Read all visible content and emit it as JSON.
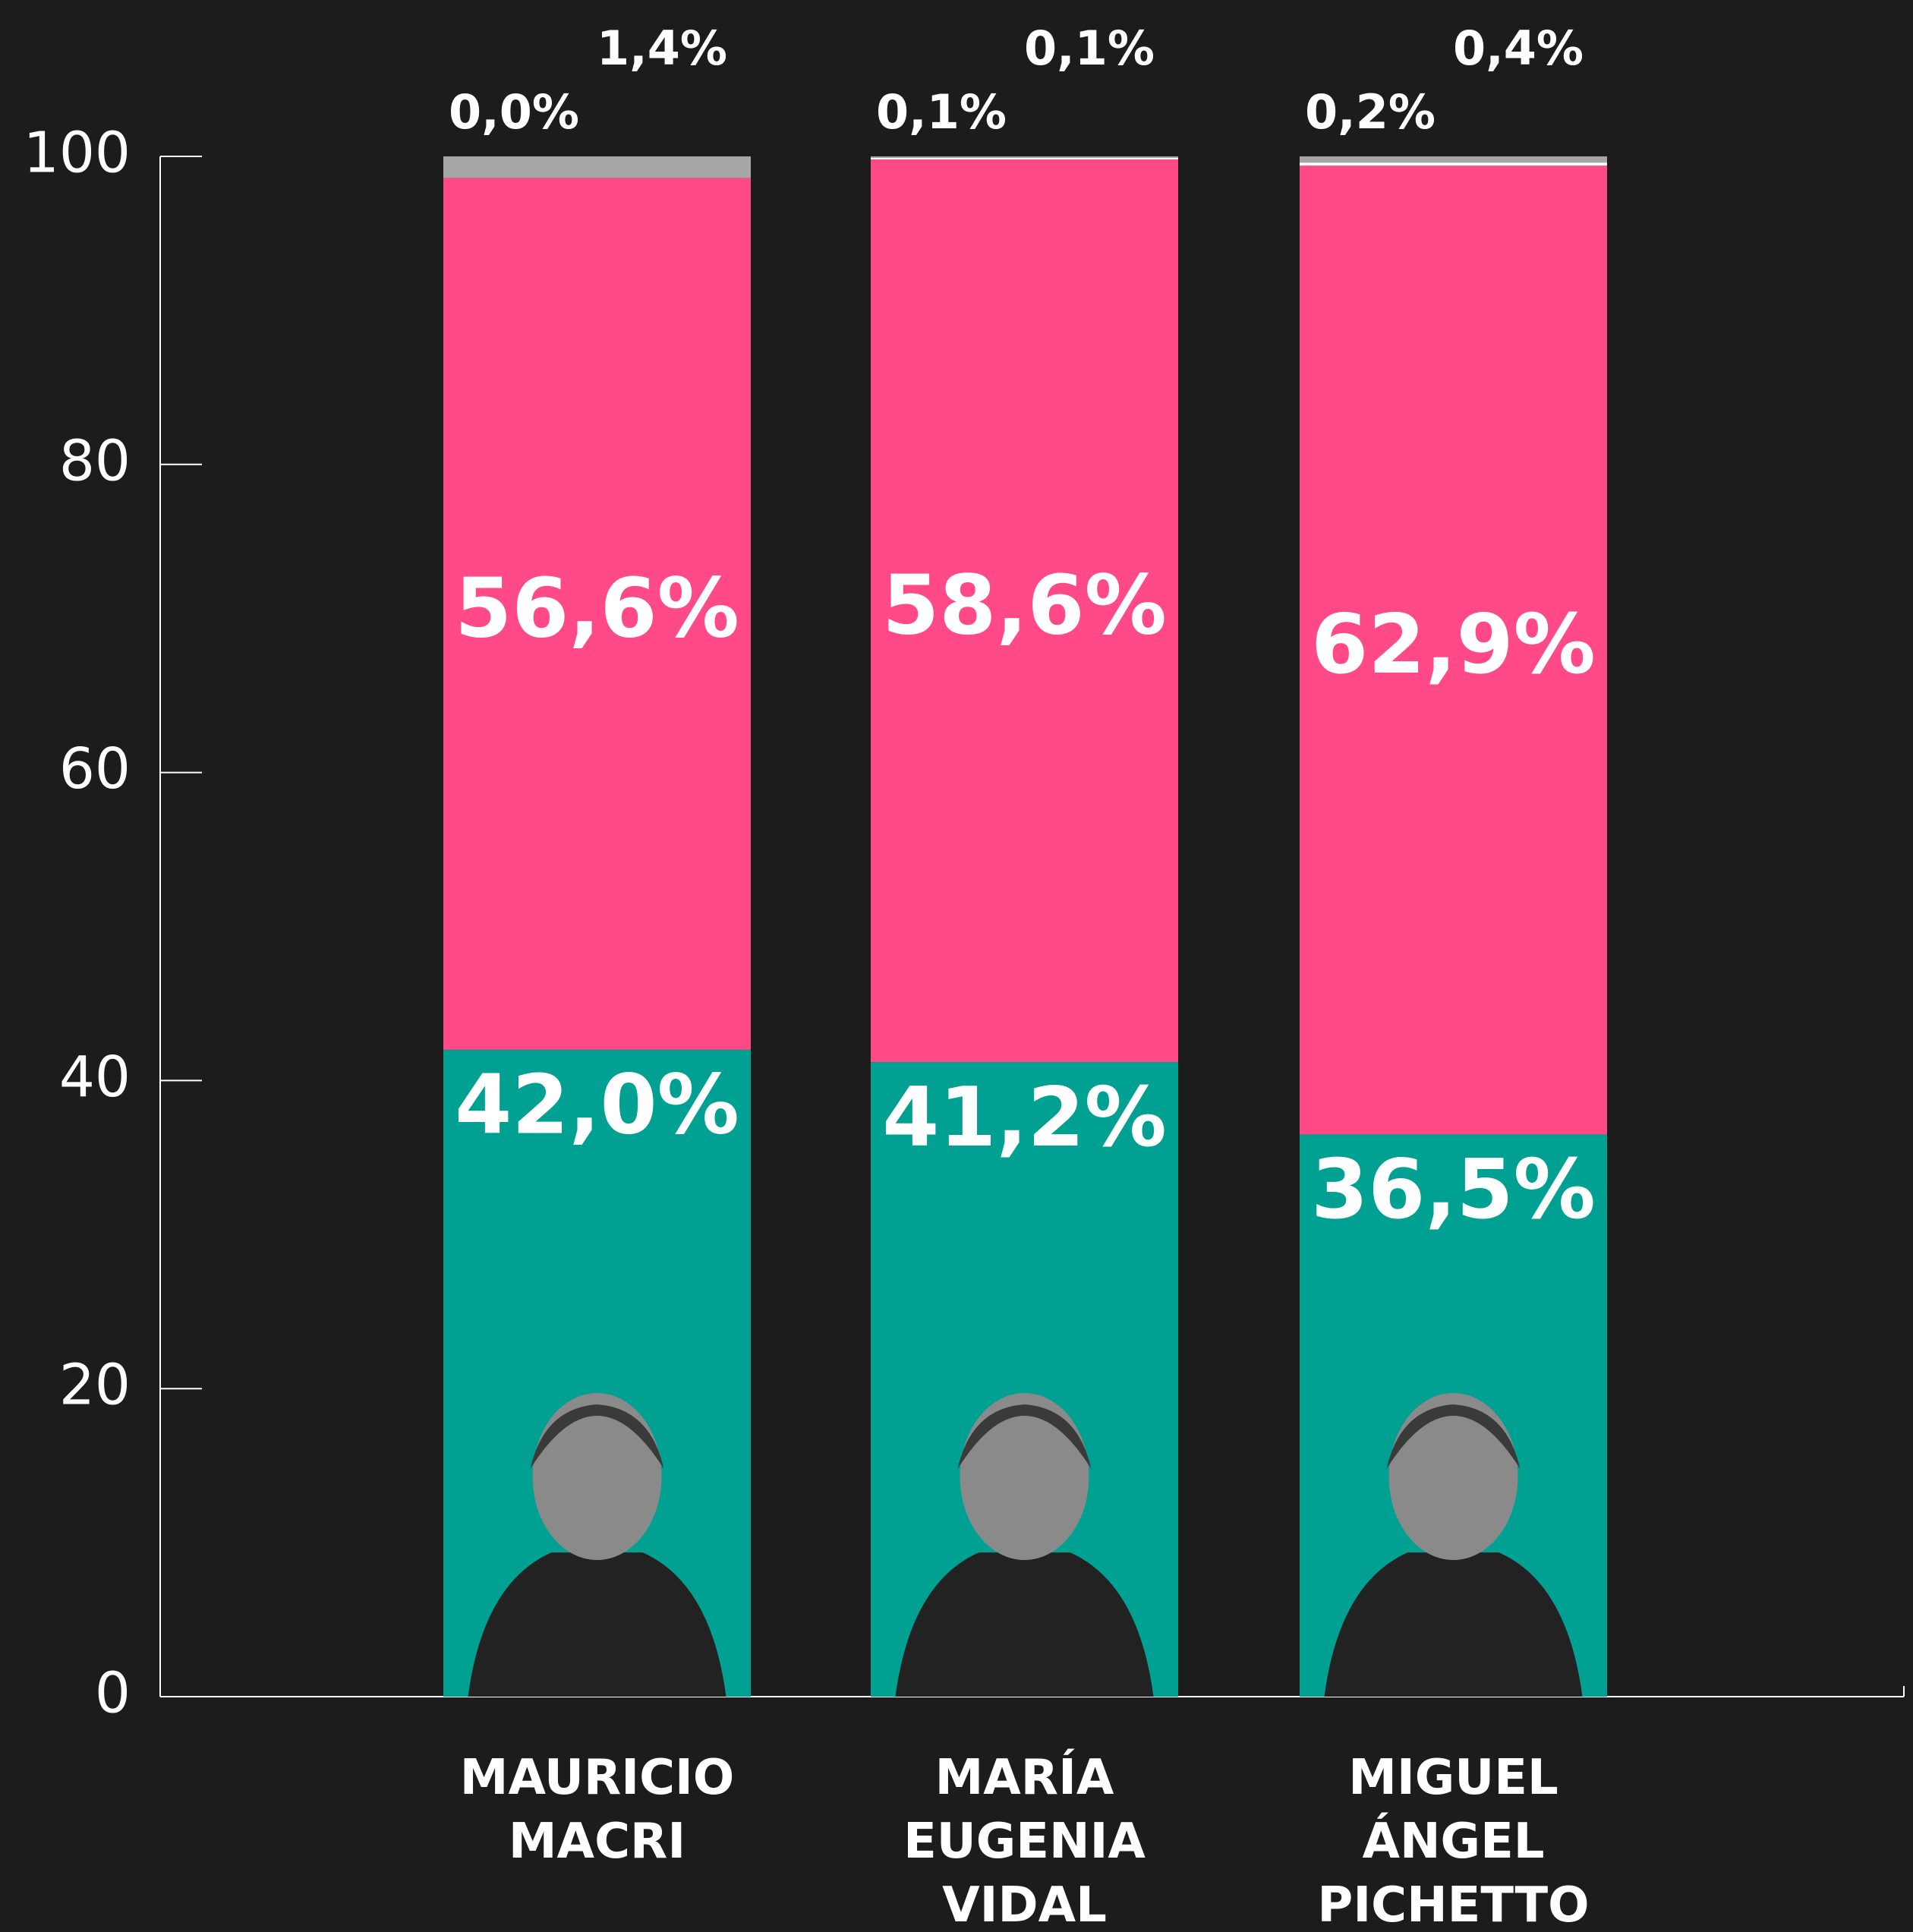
{
  "chart_data": {
    "type": "stacked_bar",
    "categories": [
      "MAURICIO MACRI",
      "MARÍA EUGENIA VIDAL",
      "MIGUEL ÁNGEL PICHETTO"
    ],
    "ylim": [
      0,
      100
    ],
    "yticks": [
      0,
      20,
      40,
      60,
      80,
      100
    ],
    "series": [
      {
        "color": "#00a093",
        "values": [
          42.0,
          41.2,
          36.5
        ],
        "value_labels": [
          "42,0%",
          "41,2%",
          "36,5%"
        ]
      },
      {
        "color": "#ff4a87",
        "values": [
          56.6,
          58.6,
          62.9
        ],
        "value_labels": [
          "56,6%",
          "58,6%",
          "62,9%"
        ]
      },
      {
        "color": "#ffffff",
        "values": [
          0.0,
          0.1,
          0.2
        ],
        "value_labels": [
          "0,0%",
          "0,1%",
          "0,2%"
        ]
      },
      {
        "color": "#a6a6a6",
        "values": [
          1.4,
          0.1,
          0.4
        ],
        "value_labels": [
          "1,4%",
          "0,1%",
          "0,4%"
        ]
      }
    ]
  }
}
